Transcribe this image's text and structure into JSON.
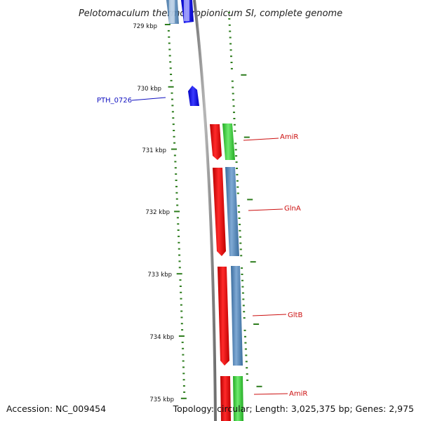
{
  "title": "Pelotomaculum thermopropionicum SI, complete genome",
  "footer": {
    "accession": "Accession: NC_009454",
    "topology": "Topology: circular; Length: 3,025,375 bp; Genes: 2,975"
  },
  "colors": {
    "backbone": "#888888",
    "ticks": "#2e7d1e",
    "blue_gene": "#1010e0",
    "steelblue_gene": "#4a7fb5",
    "red_gene": "#e81010",
    "green_gene": "#38cc38",
    "label_blue": "#1010c0",
    "label_red": "#cc1010"
  },
  "kbp_labels": [
    "729 kbp",
    "730 kbp",
    "731 kbp",
    "732 kbp",
    "733 kbp",
    "734 kbp",
    "735 kbp"
  ],
  "gene_labels": [
    {
      "text": "PTH_0726",
      "color": "blue"
    },
    {
      "text": "AmiR",
      "color": "red"
    },
    {
      "text": "GlnA",
      "color": "red"
    },
    {
      "text": "GltB",
      "color": "red"
    },
    {
      "text": "AmiR",
      "color": "red"
    }
  ]
}
